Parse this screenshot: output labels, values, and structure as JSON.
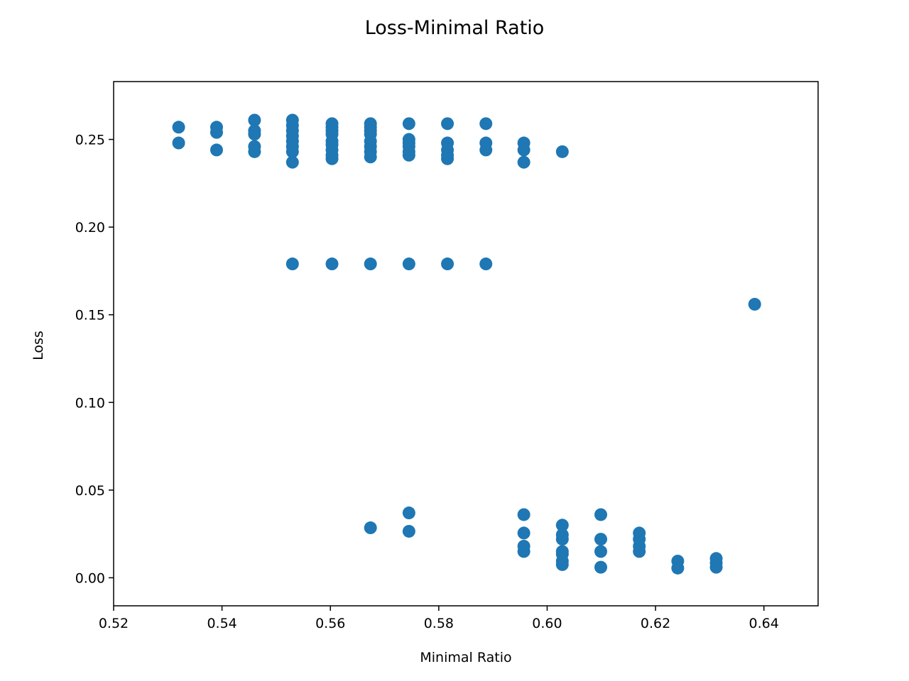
{
  "chart_data": {
    "type": "scatter",
    "title": "Loss-Minimal Ratio",
    "xlabel": "Minimal Ratio",
    "ylabel": "Loss",
    "xlim": [
      0.52,
      0.65
    ],
    "ylim": [
      -0.016,
      0.283
    ],
    "xticks": [
      0.52,
      0.54,
      0.56,
      0.58,
      0.6,
      0.62,
      0.64
    ],
    "xtick_labels": [
      "0.52",
      "0.54",
      "0.56",
      "0.58",
      "0.60",
      "0.62",
      "0.64"
    ],
    "yticks": [
      0.0,
      0.05,
      0.1,
      0.15,
      0.2,
      0.25
    ],
    "ytick_labels": [
      "0.00",
      "0.05",
      "0.10",
      "0.15",
      "0.20",
      "0.25"
    ],
    "grid": false,
    "marker_color": "#1f77b4",
    "series": [
      {
        "points": [
          [
            0.532,
            0.257
          ],
          [
            0.532,
            0.248
          ],
          [
            0.539,
            0.257
          ],
          [
            0.539,
            0.254
          ],
          [
            0.539,
            0.244
          ],
          [
            0.546,
            0.261
          ],
          [
            0.546,
            0.255
          ],
          [
            0.546,
            0.253
          ],
          [
            0.546,
            0.246
          ],
          [
            0.546,
            0.243
          ],
          [
            0.553,
            0.261
          ],
          [
            0.553,
            0.258
          ],
          [
            0.553,
            0.255
          ],
          [
            0.553,
            0.252
          ],
          [
            0.553,
            0.249
          ],
          [
            0.553,
            0.246
          ],
          [
            0.553,
            0.243
          ],
          [
            0.553,
            0.237
          ],
          [
            0.553,
            0.179
          ],
          [
            0.5603,
            0.259
          ],
          [
            0.5603,
            0.257
          ],
          [
            0.5603,
            0.255
          ],
          [
            0.5603,
            0.253
          ],
          [
            0.5603,
            0.249
          ],
          [
            0.5603,
            0.247
          ],
          [
            0.5603,
            0.244
          ],
          [
            0.5603,
            0.241
          ],
          [
            0.5603,
            0.239
          ],
          [
            0.5603,
            0.179
          ],
          [
            0.5674,
            0.259
          ],
          [
            0.5674,
            0.257
          ],
          [
            0.5674,
            0.255
          ],
          [
            0.5674,
            0.253
          ],
          [
            0.5674,
            0.249
          ],
          [
            0.5674,
            0.246
          ],
          [
            0.5674,
            0.243
          ],
          [
            0.5674,
            0.24
          ],
          [
            0.5674,
            0.179
          ],
          [
            0.5674,
            0.0285
          ],
          [
            0.5745,
            0.259
          ],
          [
            0.5745,
            0.25
          ],
          [
            0.5745,
            0.248
          ],
          [
            0.5745,
            0.246
          ],
          [
            0.5745,
            0.243
          ],
          [
            0.5745,
            0.241
          ],
          [
            0.5745,
            0.179
          ],
          [
            0.5745,
            0.037
          ],
          [
            0.5745,
            0.0265
          ],
          [
            0.5816,
            0.259
          ],
          [
            0.5816,
            0.248
          ],
          [
            0.5816,
            0.244
          ],
          [
            0.5816,
            0.241
          ],
          [
            0.5816,
            0.239
          ],
          [
            0.5816,
            0.179
          ],
          [
            0.5887,
            0.259
          ],
          [
            0.5887,
            0.248
          ],
          [
            0.5887,
            0.244
          ],
          [
            0.5887,
            0.179
          ],
          [
            0.5957,
            0.248
          ],
          [
            0.5957,
            0.244
          ],
          [
            0.5957,
            0.237
          ],
          [
            0.5957,
            0.036
          ],
          [
            0.5957,
            0.0255
          ],
          [
            0.5957,
            0.018
          ],
          [
            0.5957,
            0.015
          ],
          [
            0.6028,
            0.243
          ],
          [
            0.6028,
            0.03
          ],
          [
            0.6028,
            0.0245
          ],
          [
            0.6028,
            0.022
          ],
          [
            0.6028,
            0.015
          ],
          [
            0.6028,
            0.0135
          ],
          [
            0.6028,
            0.0095
          ],
          [
            0.6028,
            0.0075
          ],
          [
            0.6099,
            0.036
          ],
          [
            0.6099,
            0.022
          ],
          [
            0.6099,
            0.015
          ],
          [
            0.6099,
            0.006
          ],
          [
            0.617,
            0.0255
          ],
          [
            0.617,
            0.022
          ],
          [
            0.617,
            0.018
          ],
          [
            0.617,
            0.015
          ],
          [
            0.6241,
            0.0095
          ],
          [
            0.6241,
            0.0055
          ],
          [
            0.6312,
            0.011
          ],
          [
            0.6312,
            0.0085
          ],
          [
            0.6312,
            0.006
          ],
          [
            0.6383,
            0.156
          ]
        ]
      }
    ]
  }
}
